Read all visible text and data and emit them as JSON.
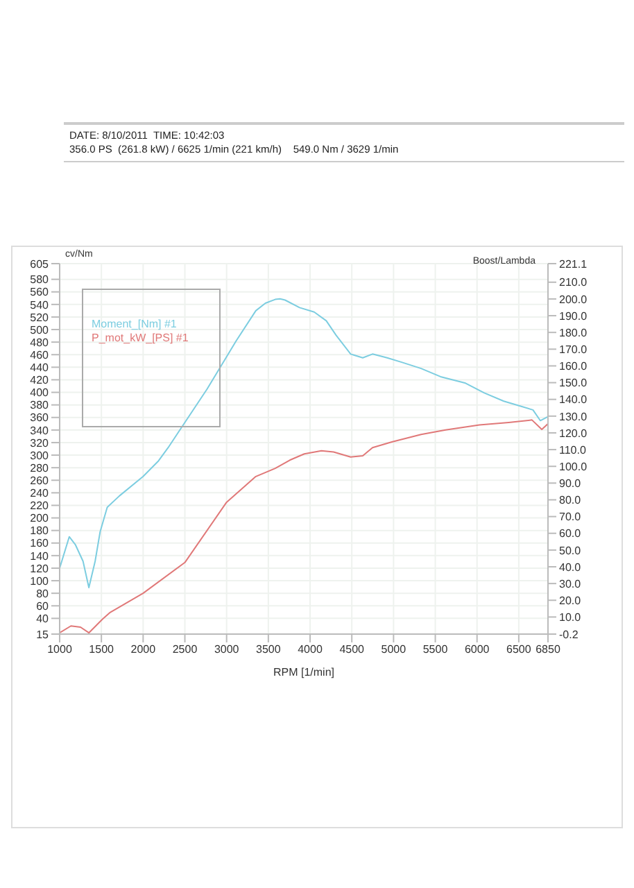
{
  "chart_data": {
    "type": "line",
    "annotations": [
      "DATE: 8/10/2011  TIME: 10:42:03",
      "356.0 PS  (261.8 kW) / 6625 1/min (221 km/h)    549.0 Nm / 3629 1/min"
    ],
    "xlabel": "RPM  [1/min]",
    "ylabel": "cv/Nm",
    "y2label": "Boost/Lambda",
    "xlim": [
      1000,
      6850
    ],
    "xticks": [
      1000,
      1500,
      2000,
      2500,
      3000,
      3500,
      4000,
      4500,
      5000,
      5500,
      6000,
      6500,
      6850
    ],
    "ylim": [
      15,
      605
    ],
    "yticks": [
      15,
      40,
      60,
      80,
      100,
      120,
      140,
      160,
      180,
      200,
      220,
      240,
      260,
      280,
      300,
      320,
      340,
      360,
      380,
      400,
      420,
      440,
      460,
      480,
      500,
      520,
      540,
      560,
      580,
      605
    ],
    "y2lim": [
      -0.2,
      221.1
    ],
    "y2ticks": [
      -0.2,
      {
        "value": 10,
        "label": "10.0"
      },
      {
        "value": 20,
        "label": "20.0"
      },
      {
        "value": 30,
        "label": "30.0"
      },
      {
        "value": 40,
        "label": "40.0"
      },
      {
        "value": 50,
        "label": "50.0"
      },
      {
        "value": 60,
        "label": "60.0"
      },
      {
        "value": 70,
        "label": "70.0"
      },
      {
        "value": 80,
        "label": "80.0"
      },
      {
        "value": 90,
        "label": "90.0"
      },
      {
        "value": 100,
        "label": "100.0"
      },
      {
        "value": 110,
        "label": "110.0"
      },
      {
        "value": 120,
        "label": "120.0"
      },
      {
        "value": 130,
        "label": "130.0"
      },
      {
        "value": 140,
        "label": "140.0"
      },
      {
        "value": 150,
        "label": "150.0"
      },
      {
        "value": 160,
        "label": "160.0"
      },
      {
        "value": 170,
        "label": "170.0"
      },
      {
        "value": 180,
        "label": "180.0"
      },
      {
        "value": 190,
        "label": "190.0"
      },
      {
        "value": 200,
        "label": "200.0"
      },
      {
        "value": 210,
        "label": "210.0"
      },
      221.1
    ],
    "grid": true,
    "legend": "top left",
    "marker": "none",
    "line_style": "solid",
    "series": [
      {
        "name": "Moment_[Nm] #1",
        "color": "#7ccde0",
        "x": [
          1000,
          1115,
          1190,
          1280,
          1350,
          1425,
          1485,
          1570,
          1715,
          2000,
          2185,
          2300,
          2765,
          3115,
          3350,
          3465,
          3582,
          3640,
          3700,
          3874,
          4049,
          4194,
          4311,
          4486,
          4631,
          4748,
          4923,
          5097,
          5330,
          5562,
          5854,
          6087,
          6320,
          6495,
          6670,
          6758,
          6845
        ],
        "values": [
          120,
          170,
          157,
          131,
          89,
          131,
          178,
          217,
          235,
          266,
          291,
          312,
          405,
          482,
          530,
          542,
          548,
          549,
          547,
          535,
          528,
          514,
          491,
          461,
          455,
          461,
          455,
          448,
          438,
          425,
          415,
          399,
          386,
          379,
          372,
          355,
          361
        ]
      },
      {
        "name": "P_mot_kW_[PS] #1",
        "color": "#e07878",
        "x": [
          1000,
          1135,
          1250,
          1350,
          1515,
          1600,
          2000,
          2500,
          3000,
          3350,
          3582,
          3757,
          3931,
          4136,
          4282,
          4486,
          4631,
          4748,
          4980,
          5330,
          5622,
          6029,
          6379,
          6658,
          6776,
          6850
        ],
        "values": [
          17,
          28,
          26,
          17,
          39,
          49,
          80,
          129,
          225,
          266,
          279,
          292,
          302,
          307,
          305,
          297,
          299,
          312,
          321,
          333,
          340,
          348,
          352,
          356,
          341,
          350
        ]
      }
    ]
  }
}
